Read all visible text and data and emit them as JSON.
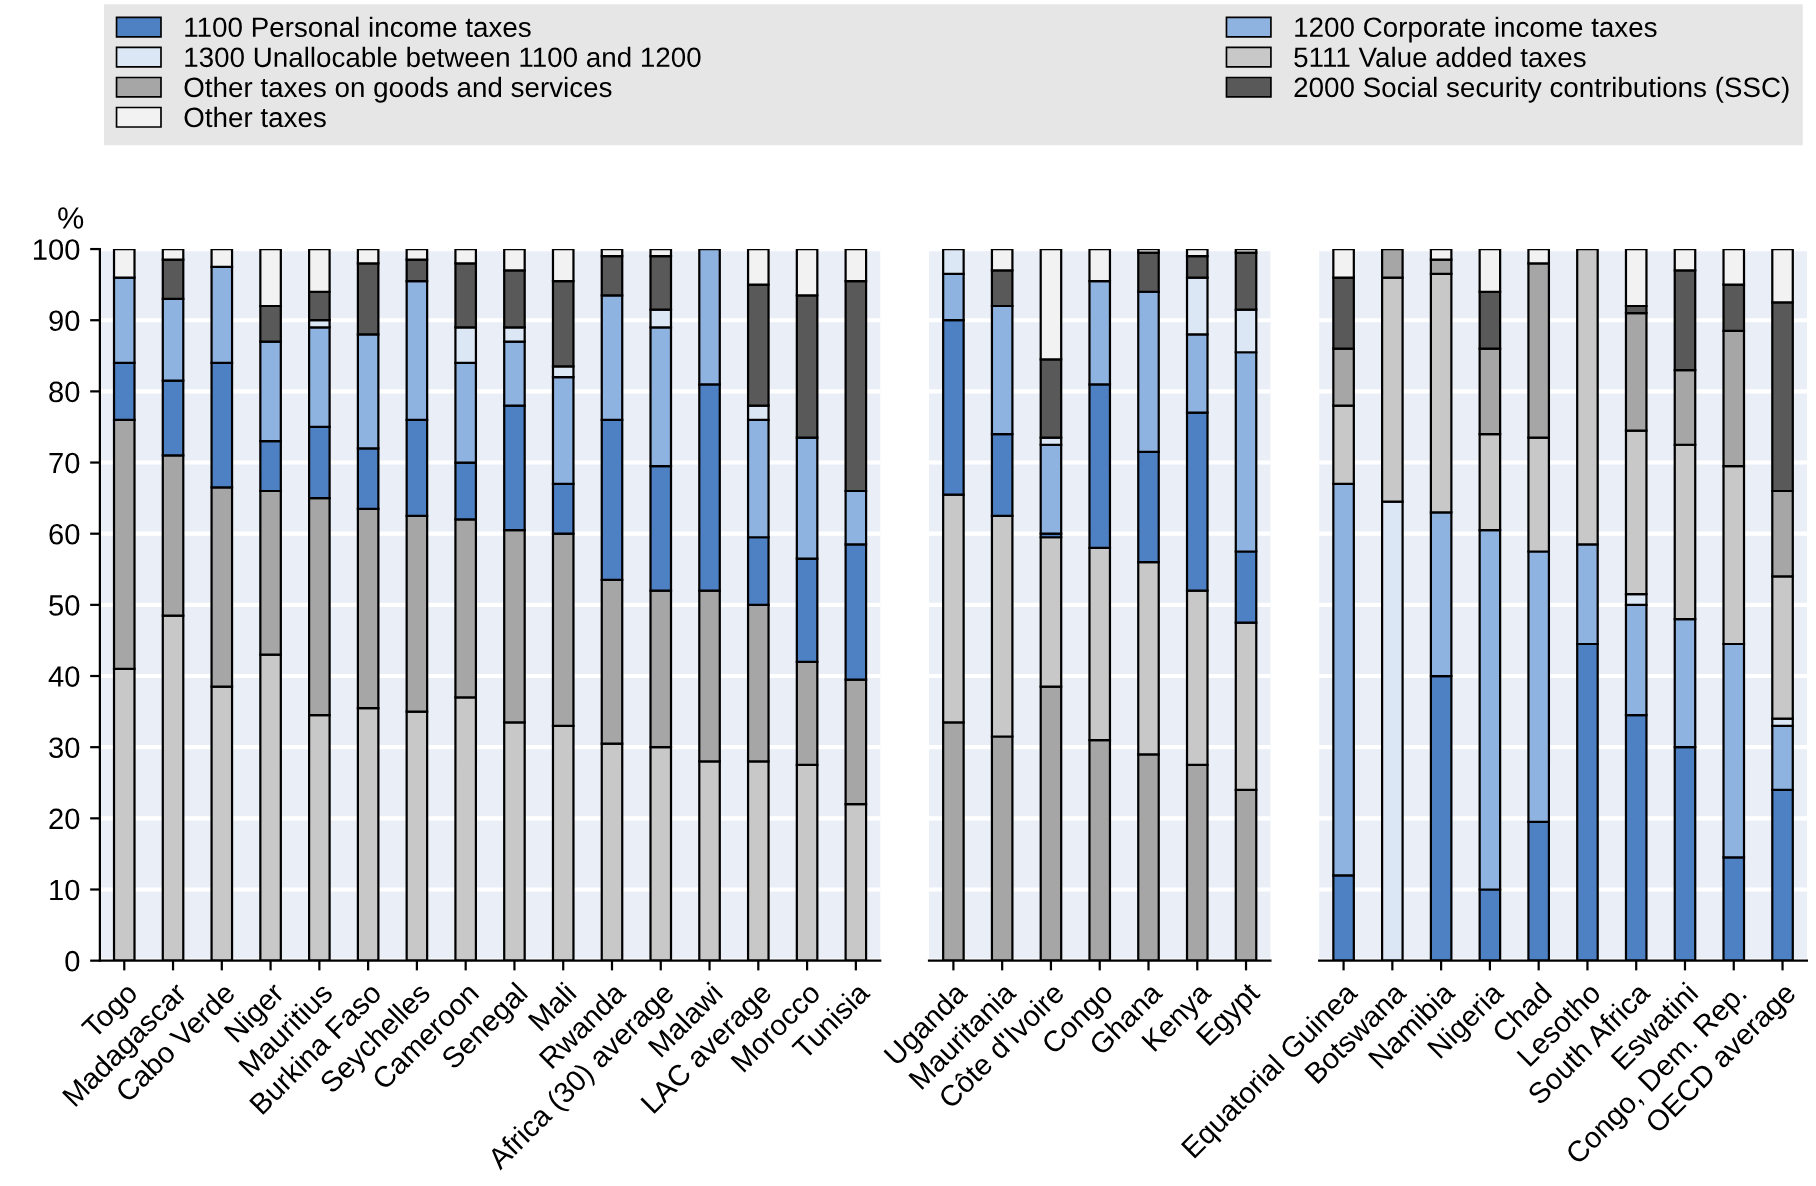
{
  "chart_data": [
    {
      "type": "bar",
      "stacked": true,
      "ylabel": "%",
      "ylim": [
        0,
        100
      ],
      "yticks": [
        0,
        10,
        20,
        30,
        40,
        50,
        60,
        70,
        80,
        90,
        100
      ],
      "grid": "y",
      "legend": "top",
      "categories": [
        "Togo",
        "Madagascar",
        "Cabo Verde",
        "Niger",
        "Mauritius",
        "Burkina Faso",
        "Seychelles",
        "Cameroon",
        "Senegal",
        "Mali",
        "Rwanda",
        "Africa (30) average",
        "Malawi",
        "LAC average",
        "Morocco",
        "Tunisia"
      ],
      "series": [
        {
          "name": "5111 Value added taxes",
          "color": "#c8c8c8",
          "values": [
            41,
            48.5,
            38.5,
            43,
            34.5,
            35.5,
            35,
            37,
            33.5,
            33,
            30.5,
            30,
            28,
            28,
            27.5,
            22
          ]
        },
        {
          "name": "Other taxes on goods and services",
          "color": "#a6a6a6",
          "values": [
            35,
            22.5,
            28,
            23,
            30.5,
            28,
            27.5,
            25,
            27,
            27,
            23,
            22,
            24,
            22,
            14.5,
            17.5
          ]
        },
        {
          "name": "1100 Personal income taxes",
          "color": "#4e81c4",
          "values": [
            8,
            10.5,
            17.5,
            7,
            10,
            8.5,
            13.5,
            8,
            17.5,
            7,
            22.5,
            17.5,
            29,
            9.5,
            14.5,
            19
          ]
        },
        {
          "name": "1200 Corporate income taxes",
          "color": "#8fb3e0",
          "values": [
            12,
            11.5,
            13.5,
            14,
            14,
            16,
            19.5,
            14,
            9,
            15,
            17.5,
            19.5,
            19,
            16.5,
            17,
            7.5
          ]
        },
        {
          "name": "1300 Unallocable between 1100 and 1200",
          "color": "#dce7f5",
          "values": [
            0,
            0,
            0,
            0,
            1,
            0,
            0,
            5,
            2,
            1.5,
            0,
            2.5,
            0,
            2,
            0,
            0
          ]
        },
        {
          "name": "2000 Social security contributions (SSC)",
          "color": "#595959",
          "values": [
            0,
            5.5,
            0,
            5,
            4,
            10,
            3,
            9,
            8,
            12,
            5.5,
            7.5,
            0,
            17,
            20,
            29.5
          ]
        },
        {
          "name": "Other taxes",
          "color": "#f2f2f2",
          "values": [
            4,
            1.5,
            2.5,
            8,
            6,
            2,
            1.5,
            2,
            3,
            4.5,
            1,
            1,
            0,
            5,
            6.5,
            4.5
          ]
        }
      ]
    },
    {
      "type": "bar",
      "stacked": true,
      "ylim": [
        0,
        100
      ],
      "yticks": [
        0,
        10,
        20,
        30,
        40,
        50,
        60,
        70,
        80,
        90,
        100
      ],
      "grid": "y",
      "tick_labels": "x",
      "categories": [
        "Uganda",
        "Mauritania",
        "Côte d'Ivoire",
        "Congo",
        "Ghana",
        "Kenya",
        "Egypt"
      ],
      "series": [
        {
          "name": "Other taxes on goods and services",
          "color": "#a6a6a6",
          "values": [
            33.5,
            31.5,
            38.5,
            31,
            29,
            27.5,
            24
          ]
        },
        {
          "name": "5111 Value added taxes",
          "color": "#c8c8c8",
          "values": [
            32,
            31,
            21,
            27,
            27,
            24.5,
            23.5
          ]
        },
        {
          "name": "1100 Personal income taxes",
          "color": "#4e81c4",
          "values": [
            24.5,
            11.5,
            0.5,
            23,
            15.5,
            25,
            10
          ]
        },
        {
          "name": "1200 Corporate income taxes",
          "color": "#8fb3e0",
          "values": [
            6.5,
            18,
            12.5,
            14.5,
            22.5,
            11,
            28
          ]
        },
        {
          "name": "1300 Unallocable between 1100 and 1200",
          "color": "#dce7f5",
          "values": [
            3.5,
            0,
            1,
            0,
            0,
            8,
            6
          ]
        },
        {
          "name": "2000 Social security contributions (SSC)",
          "color": "#595959",
          "values": [
            0,
            5,
            11,
            0,
            5.5,
            3,
            8
          ]
        },
        {
          "name": "Other taxes",
          "color": "#f2f2f2",
          "values": [
            0,
            3,
            15.5,
            4.5,
            0.5,
            1,
            0.5
          ]
        }
      ]
    },
    {
      "type": "bar",
      "stacked": true,
      "ylim": [
        0,
        100
      ],
      "yticks": [
        0,
        10,
        20,
        30,
        40,
        50,
        60,
        70,
        80,
        90,
        100
      ],
      "grid": "y",
      "tick_labels": "x",
      "legend": "top",
      "categories": [
        "Equatorial Guinea",
        "Botswana",
        "Namibia",
        "Nigeria",
        "Chad",
        "Lesotho",
        "South Africa",
        "Eswatini",
        "Congo, Dem. Rep.",
        "OECD average"
      ],
      "series": [
        {
          "name": "1100 Personal income taxes",
          "color": "#4e81c4",
          "values": [
            12,
            0,
            40,
            10,
            19.5,
            44.5,
            34.5,
            30,
            14.5,
            24
          ]
        },
        {
          "name": "1200 Corporate income taxes",
          "color": "#8fb3e0",
          "values": [
            55,
            0,
            23,
            50.5,
            38,
            14,
            15.5,
            18,
            30,
            9
          ]
        },
        {
          "name": "1300 Unallocable between 1100 and 1200",
          "color": "#dce7f5",
          "values": [
            0,
            64.5,
            0,
            0,
            0,
            0,
            1.5,
            0,
            0,
            1
          ]
        },
        {
          "name": "5111 Value added taxes",
          "color": "#c8c8c8",
          "values": [
            11,
            31.5,
            33.5,
            13.5,
            16,
            41.5,
            23,
            24.5,
            25,
            20
          ]
        },
        {
          "name": "Other taxes on goods and services",
          "color": "#a6a6a6",
          "values": [
            8,
            4,
            2,
            12,
            24.5,
            0,
            16.5,
            10.5,
            19,
            12
          ]
        },
        {
          "name": "2000 Social security contributions (SSC)",
          "color": "#595959",
          "values": [
            10,
            0,
            0,
            8,
            0,
            0,
            1,
            14,
            6.5,
            26.5
          ]
        },
        {
          "name": "Other taxes",
          "color": "#f2f2f2",
          "values": [
            4,
            0,
            1.5,
            6,
            2,
            0,
            8,
            3,
            5,
            7.5
          ]
        }
      ]
    }
  ]
}
